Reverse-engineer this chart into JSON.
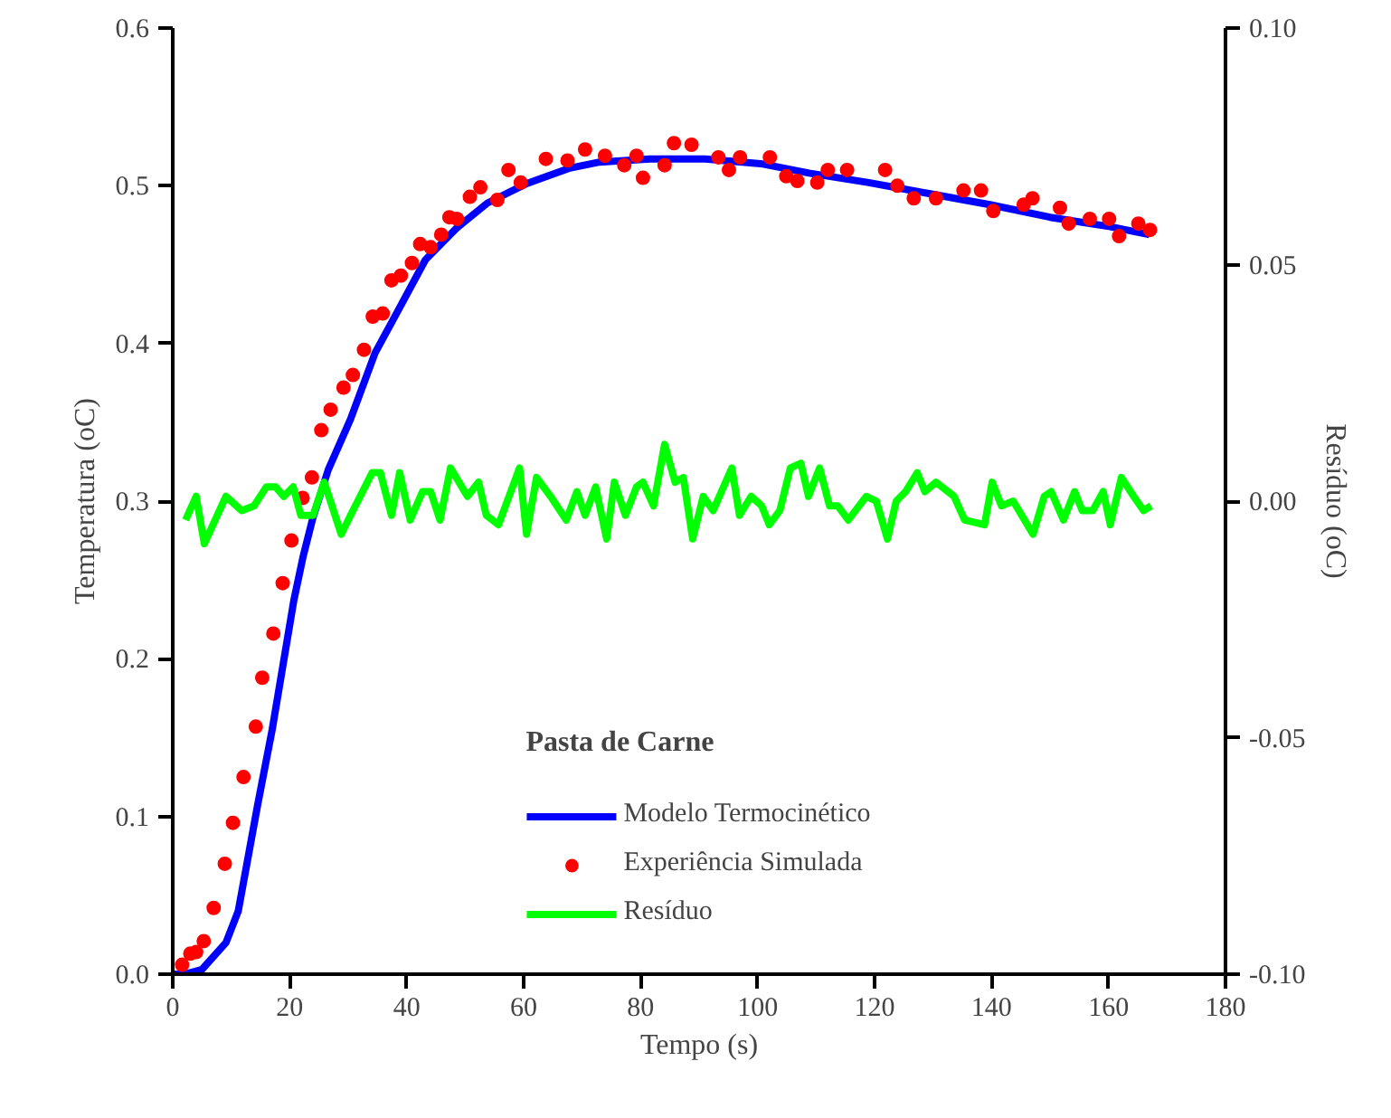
{
  "chart_data": {
    "type": "line",
    "xlabel": "Tempo (s)",
    "ylabel": "Temperatura (oC)",
    "y2label": "Resíduo (oC)",
    "legend_title": "Pasta de Carne",
    "legend": "bottom",
    "grid": false,
    "xlim": [
      0,
      180
    ],
    "xticks": [
      0,
      20,
      40,
      60,
      80,
      100,
      120,
      140,
      160,
      180
    ],
    "ylim": [
      0,
      0.6
    ],
    "yticks": [
      {
        "value": 0,
        "label": "0.0"
      },
      0.1,
      0.2,
      0.3,
      0.4,
      0.5,
      0.6
    ],
    "y2lim": [
      -0.1,
      0.1
    ],
    "y2ticks": [
      {
        "value": -0.1,
        "label": "-0.10"
      },
      -0.05,
      {
        "value": 0,
        "label": "0.00"
      },
      0.05,
      {
        "value": 0.1,
        "label": "0.10"
      }
    ],
    "series": [
      {
        "name": "Modelo Termocinético",
        "color": "#0000ff",
        "x": [
          0,
          2,
          5,
          9.1,
          11.2,
          14.5,
          17,
          20.7,
          22.3,
          24,
          26.6,
          30.4,
          34.6,
          38.4,
          43.2,
          48.5,
          53.8,
          60.3,
          67.7,
          73,
          81.6,
          91,
          100.5,
          108.8,
          119,
          129.3,
          139.7,
          150,
          160.3,
          167
        ],
        "values": [
          0,
          0,
          0.003,
          0.02,
          0.04,
          0.107,
          0.155,
          0.237,
          0.265,
          0.29,
          0.32,
          0.352,
          0.394,
          0.42,
          0.453,
          0.473,
          0.489,
          0.501,
          0.511,
          0.515,
          0.517,
          0.517,
          0.514,
          0.508,
          0.502,
          0.495,
          0.488,
          0.48,
          0.474,
          0.469
        ]
      },
      {
        "name": "Experiência Simulada",
        "type": "scatter",
        "color": "#ff0000",
        "marker": "circle",
        "x": [
          1.6,
          3,
          4,
          5.3,
          7,
          8.9,
          10.3,
          12.1,
          14.2,
          15.3,
          17.2,
          18.8,
          20.3,
          22.2,
          23.8,
          25.4,
          27,
          29.2,
          30.8,
          32.7,
          34.2,
          35.9,
          37.4,
          39,
          40.9,
          42.3,
          44.1,
          45.9,
          47.3,
          48.6,
          50.8,
          52.6,
          55.5,
          57.4,
          59.5,
          63.8,
          67.5,
          70.5,
          73.9,
          77.2,
          79.3,
          80.4,
          84.1,
          85.7,
          88.7,
          93.3,
          95.1,
          97,
          102.1,
          104.9,
          106.8,
          110.2,
          112,
          115.3,
          121.8,
          123.9,
          126.7,
          130.5,
          135.2,
          138.2,
          140.3,
          145.5,
          147,
          151.7,
          153.2,
          156.8,
          160.1,
          161.8,
          165.1,
          167.1
        ],
        "values": [
          0.006,
          0.013,
          0.014,
          0.021,
          0.042,
          0.07,
          0.096,
          0.125,
          0.157,
          0.188,
          0.216,
          0.248,
          0.275,
          0.302,
          0.315,
          0.345,
          0.358,
          0.372,
          0.38,
          0.396,
          0.417,
          0.419,
          0.44,
          0.443,
          0.451,
          0.463,
          0.461,
          0.469,
          0.48,
          0.479,
          0.493,
          0.499,
          0.491,
          0.51,
          0.502,
          0.517,
          0.516,
          0.523,
          0.519,
          0.513,
          0.519,
          0.505,
          0.513,
          0.527,
          0.526,
          0.518,
          0.51,
          0.518,
          0.518,
          0.506,
          0.503,
          0.502,
          0.51,
          0.51,
          0.51,
          0.5,
          0.492,
          0.492,
          0.497,
          0.497,
          0.484,
          0.488,
          0.492,
          0.486,
          0.476,
          0.479,
          0.479,
          0.468,
          0.476,
          0.472
        ]
      },
      {
        "name": "Resíduo",
        "axis": "y2",
        "color": "#00ff00",
        "x": [
          2.2,
          4,
          5.4,
          9.1,
          11.8,
          13.9,
          16,
          17.6,
          19,
          20.6,
          21.9,
          24,
          25.9,
          28.8,
          30.4,
          34.1,
          35.5,
          37.4,
          38.8,
          40.6,
          42.7,
          44.1,
          45.7,
          47.5,
          50.4,
          52.3,
          53.6,
          55.7,
          59.3,
          60.5,
          62.2,
          64.6,
          67.3,
          69.1,
          70.5,
          72.3,
          74.2,
          75.5,
          77.4,
          79.3,
          80.4,
          82.2,
          84.1,
          85.9,
          87.3,
          88.9,
          90.7,
          92.4,
          95.6,
          96.9,
          98.9,
          100.7,
          102,
          103.8,
          105.6,
          107.4,
          108.7,
          110.6,
          112.3,
          113.7,
          115.5,
          118.6,
          120.3,
          122.2,
          123.7,
          125.3,
          127.3,
          128.6,
          130.5,
          133.6,
          135.4,
          138.8,
          140.1,
          141.7,
          143.7,
          147.1,
          149,
          150.2,
          152.3,
          154.2,
          155.5,
          157.3,
          159.1,
          160.3,
          162.2,
          164.3,
          166,
          167.3
        ],
        "values": [
          -0.004,
          0.001,
          -0.009,
          0.001,
          -0.002,
          -0.001,
          0.003,
          0.003,
          0.001,
          0.003,
          -0.003,
          -0.003,
          0.004,
          -0.007,
          -0.003,
          0.006,
          0.006,
          -0.003,
          0.006,
          -0.004,
          0.002,
          0.002,
          -0.004,
          0.007,
          0.001,
          0.004,
          -0.003,
          -0.005,
          0.007,
          -0.007,
          0.005,
          0.001,
          -0.004,
          0.002,
          -0.003,
          0.003,
          -0.008,
          0.004,
          -0.003,
          0.003,
          0.004,
          -0.001,
          0.012,
          0.004,
          0.005,
          -0.008,
          0.001,
          -0.002,
          0.007,
          -0.003,
          0.001,
          -0.001,
          -0.005,
          -0.002,
          0.007,
          0.008,
          0.001,
          0.007,
          -0.001,
          -0.001,
          -0.004,
          0.001,
          0,
          -0.008,
          0,
          0.002,
          0.006,
          0.002,
          0.004,
          0.001,
          -0.004,
          -0.005,
          0.004,
          -0.001,
          0,
          -0.007,
          0.001,
          0.002,
          -0.004,
          0.002,
          -0.002,
          -0.002,
          0.002,
          -0.005,
          0.005,
          0.001,
          -0.002,
          -0.001
        ]
      }
    ]
  }
}
